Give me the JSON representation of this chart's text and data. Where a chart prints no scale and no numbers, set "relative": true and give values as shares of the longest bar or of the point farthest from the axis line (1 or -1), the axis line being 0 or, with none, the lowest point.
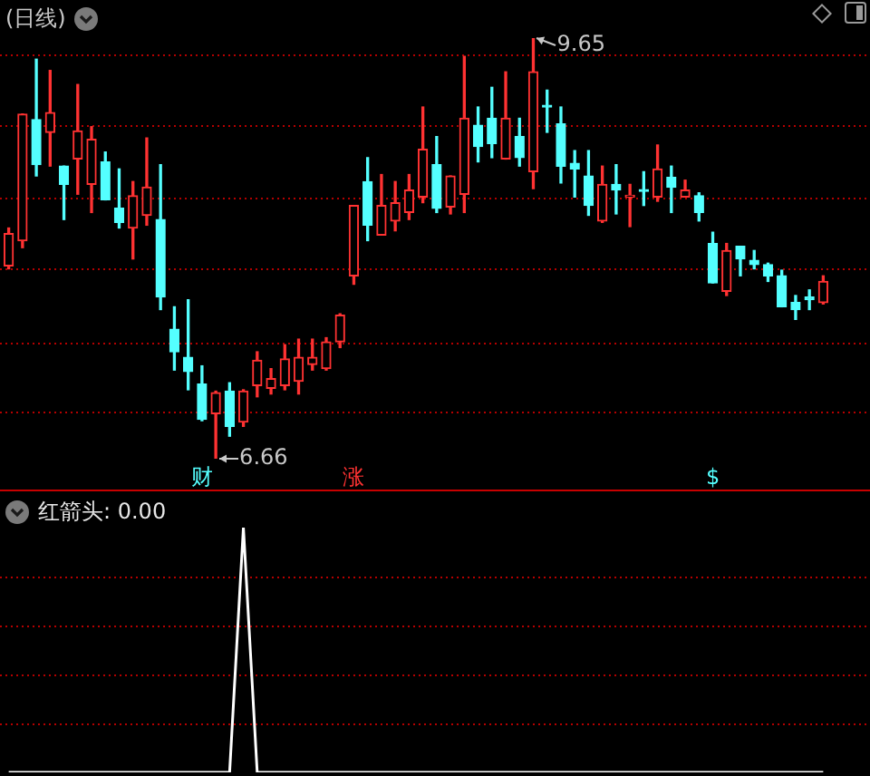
{
  "chart_data": [
    {
      "type": "candlestick",
      "title": "(日线)",
      "categories": [
        null,
        null,
        null,
        null,
        null,
        null,
        null,
        null,
        null,
        null,
        null,
        null,
        null,
        null,
        null,
        null,
        null,
        null,
        null,
        null,
        null,
        null,
        null,
        null,
        null,
        null,
        null,
        null,
        null,
        null,
        null,
        null,
        null,
        null,
        null,
        null,
        null,
        null,
        null,
        null,
        null,
        null,
        null,
        null,
        null,
        null,
        null,
        null,
        null,
        null,
        null,
        null,
        null,
        null,
        null,
        null,
        null,
        null,
        null,
        null
      ],
      "ohlc": [
        [
          8.03,
          8.3,
          8.01,
          8.26
        ],
        [
          8.21,
          9.11,
          8.16,
          9.11
        ],
        [
          9.07,
          9.5,
          8.67,
          8.75
        ],
        [
          8.98,
          9.42,
          8.74,
          9.12
        ],
        [
          8.74,
          8.74,
          8.36,
          8.61
        ],
        [
          8.79,
          9.32,
          8.54,
          8.99
        ],
        [
          8.61,
          9.02,
          8.41,
          8.93
        ],
        [
          8.77,
          8.84,
          8.5,
          8.5
        ],
        [
          8.44,
          8.72,
          8.3,
          8.34
        ],
        [
          8.3,
          8.63,
          8.08,
          8.53
        ],
        [
          8.39,
          8.94,
          8.32,
          8.59
        ],
        [
          8.36,
          8.75,
          7.72,
          7.81
        ],
        [
          7.58,
          7.74,
          7.29,
          7.42
        ],
        [
          7.38,
          7.79,
          7.15,
          7.28
        ],
        [
          7.19,
          7.32,
          6.93,
          6.94
        ],
        [
          6.98,
          7.14,
          6.66,
          7.13
        ],
        [
          7.14,
          7.2,
          6.82,
          6.89
        ],
        [
          6.92,
          7.15,
          6.89,
          7.14
        ],
        [
          7.18,
          7.42,
          7.1,
          7.36
        ],
        [
          7.16,
          7.3,
          7.12,
          7.23
        ],
        [
          7.18,
          7.47,
          7.15,
          7.37
        ],
        [
          7.21,
          7.51,
          7.12,
          7.38
        ],
        [
          7.33,
          7.51,
          7.29,
          7.38
        ],
        [
          7.3,
          7.52,
          7.29,
          7.49
        ],
        [
          7.49,
          7.69,
          7.45,
          7.68
        ],
        [
          7.96,
          8.46,
          7.9,
          8.46
        ],
        [
          8.63,
          8.8,
          8.21,
          8.32
        ],
        [
          8.25,
          8.68,
          8.25,
          8.46
        ],
        [
          8.35,
          8.63,
          8.28,
          8.48
        ],
        [
          8.41,
          8.68,
          8.36,
          8.57
        ],
        [
          8.52,
          9.16,
          8.48,
          8.86
        ],
        [
          8.75,
          8.95,
          8.41,
          8.44
        ],
        [
          8.45,
          8.67,
          8.4,
          8.67
        ],
        [
          8.54,
          9.52,
          8.41,
          9.08
        ],
        [
          9.03,
          9.16,
          8.77,
          8.88
        ],
        [
          9.08,
          9.3,
          8.8,
          8.9
        ],
        [
          8.79,
          9.41,
          8.79,
          9.08
        ],
        [
          8.95,
          9.08,
          8.74,
          8.8
        ],
        [
          8.7,
          9.65,
          8.58,
          9.41
        ],
        [
          9.17,
          9.28,
          8.98,
          9.16
        ],
        [
          9.04,
          9.16,
          8.62,
          8.74
        ],
        [
          8.76,
          8.85,
          8.52,
          8.72
        ],
        [
          8.67,
          8.85,
          8.39,
          8.46
        ],
        [
          8.35,
          8.74,
          8.34,
          8.61
        ],
        [
          8.61,
          8.75,
          8.4,
          8.57
        ],
        [
          8.52,
          8.61,
          8.31,
          8.53
        ],
        [
          8.57,
          8.7,
          8.46,
          8.56
        ],
        [
          8.52,
          8.89,
          8.49,
          8.72
        ],
        [
          8.66,
          8.74,
          8.41,
          8.59
        ],
        [
          8.52,
          8.64,
          8.52,
          8.57
        ],
        [
          8.53,
          8.55,
          8.35,
          8.41
        ],
        [
          8.19,
          8.27,
          7.91,
          7.91
        ],
        [
          7.85,
          8.19,
          7.82,
          8.14
        ],
        [
          8.17,
          8.17,
          7.96,
          8.08
        ],
        [
          8.07,
          8.14,
          8.01,
          8.04
        ],
        [
          8.04,
          8.05,
          7.92,
          7.96
        ],
        [
          7.96,
          8.0,
          7.74,
          7.74
        ],
        [
          7.77,
          7.82,
          7.65,
          7.72
        ],
        [
          7.81,
          7.86,
          7.72,
          7.79
        ],
        [
          7.77,
          7.96,
          7.76,
          7.92
        ]
      ],
      "colors": [
        "#ff3232",
        "#ff3232",
        "#54ffff",
        "#ff3232",
        "#54ffff",
        "#ff3232",
        "#ff3232",
        "#54ffff",
        "#54ffff",
        "#ff3232",
        "#ff3232",
        "#54ffff",
        "#54ffff",
        "#54ffff",
        "#54ffff",
        "#ff3232",
        "#54ffff",
        "#ff3232",
        "#ff3232",
        "#ff3232",
        "#ff3232",
        "#ff3232",
        "#ff3232",
        "#ff3232",
        "#ff3232",
        "#ff3232",
        "#54ffff",
        "#ff3232",
        "#ff3232",
        "#ff3232",
        "#ff3232",
        "#54ffff",
        "#ff3232",
        "#ff3232",
        "#54ffff",
        "#54ffff",
        "#ff3232",
        "#54ffff",
        "#ff3232",
        "#54ffff",
        "#54ffff",
        "#54ffff",
        "#54ffff",
        "#ff3232",
        "#54ffff",
        "#ff3232",
        "#54ffff",
        "#ff3232",
        "#54ffff",
        "#ff3232",
        "#54ffff",
        "#54ffff",
        "#ff3232",
        "#54ffff",
        "#54ffff",
        "#54ffff",
        "#54ffff",
        "#54ffff",
        "#54ffff",
        "#ff3232"
      ],
      "value_labels": [
        null,
        null,
        null,
        null,
        null,
        null,
        null,
        null,
        null,
        null,
        null,
        null,
        null,
        null,
        "财",
        null,
        null,
        null,
        null,
        null,
        null,
        null,
        null,
        null,
        null,
        "涨",
        null,
        null,
        null,
        null,
        null,
        null,
        null,
        null,
        null,
        null,
        null,
        null,
        null,
        null,
        null,
        null,
        null,
        null,
        null,
        null,
        null,
        null,
        null,
        null,
        null,
        "$",
        null,
        null,
        null,
        null,
        null,
        null,
        null,
        null
      ],
      "yticks": [
        {
          "value": 6.99,
          "label": null
        },
        {
          "value": 7.49,
          "label": null
        },
        {
          "value": 8.01,
          "label": null
        },
        {
          "value": 8.51,
          "label": null
        },
        {
          "value": 9.03,
          "label": null
        },
        {
          "value": 9.53,
          "label": null
        }
      ],
      "grid": "y",
      "tick_labels": false,
      "annotations": [
        "9.65",
        "6.66"
      ]
    },
    {
      "type": "line",
      "title": "红箭头: 0.00",
      "categories": [
        null,
        null,
        null,
        null,
        null,
        null,
        null,
        null,
        null,
        null,
        null,
        null,
        null,
        null,
        null,
        null,
        null,
        null,
        null,
        null,
        null,
        null,
        null,
        null,
        null,
        null,
        null,
        null,
        null,
        null,
        null,
        null,
        null,
        null,
        null,
        null,
        null,
        null,
        null,
        null,
        null,
        null,
        null,
        null,
        null,
        null,
        null,
        null,
        null,
        null,
        null,
        null,
        null,
        null,
        null,
        null,
        null,
        null,
        null,
        null
      ],
      "values": [
        0,
        0,
        0,
        0,
        0,
        0,
        0,
        0,
        0,
        0,
        0,
        0,
        0,
        0,
        0,
        0,
        0,
        1,
        0,
        0,
        0,
        0,
        0,
        0,
        0,
        0,
        0,
        0,
        0,
        0,
        0,
        0,
        0,
        0,
        0,
        0,
        0,
        0,
        0,
        0,
        0,
        0,
        0,
        0,
        0,
        0,
        0,
        0,
        0,
        0,
        0,
        0,
        0,
        0,
        0,
        0,
        0,
        0,
        0,
        0
      ],
      "color": "#ffffff",
      "relative": true,
      "tick_labels": false,
      "marker": "none",
      "ref_lines": [
        {
          "axis": "y",
          "value": 0.2,
          "color": "#b40000",
          "line_style": "dotted"
        },
        {
          "axis": "y",
          "value": 0.4,
          "color": "#b40000",
          "line_style": "dotted"
        },
        {
          "axis": "y",
          "value": 0.6,
          "color": "#b40000",
          "line_style": "dotted"
        },
        {
          "axis": "y",
          "value": 0.8,
          "color": "#b40000",
          "line_style": "dotted"
        }
      ]
    }
  ]
}
